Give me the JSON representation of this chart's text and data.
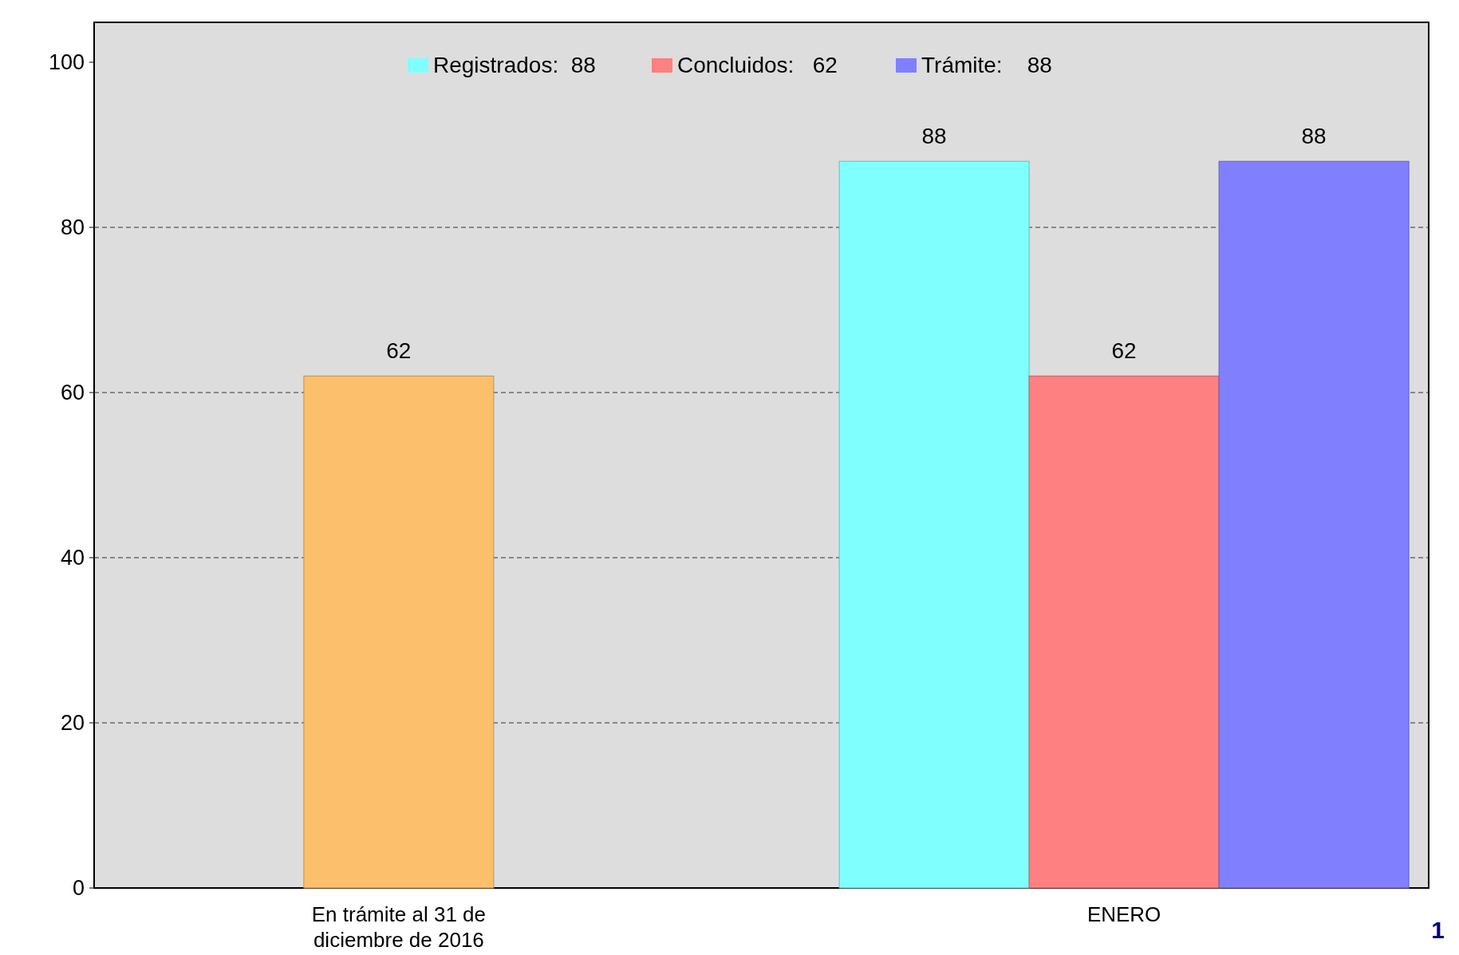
{
  "chart_data": {
    "type": "bar",
    "categories": [
      "En trámite al 31 de diciembre de 2016",
      "ENERO"
    ],
    "series": [
      {
        "color": "#fcc06c",
        "values": [
          62,
          null
        ]
      },
      {
        "name": "Registrados:  88",
        "color": "#80ffff",
        "values": [
          null,
          88
        ]
      },
      {
        "name": "Concluidos:   62",
        "color": "#ff8080",
        "values": [
          null,
          62
        ]
      },
      {
        "name": "Trámite:    88",
        "color": "#8080ff",
        "values": [
          null,
          88
        ]
      }
    ],
    "ylim": [
      0,
      100
    ],
    "yticks": [
      0,
      20,
      40,
      60,
      80,
      100
    ],
    "grid": "y",
    "legend": "top",
    "data_labels": true,
    "annotations": [
      "1"
    ]
  }
}
